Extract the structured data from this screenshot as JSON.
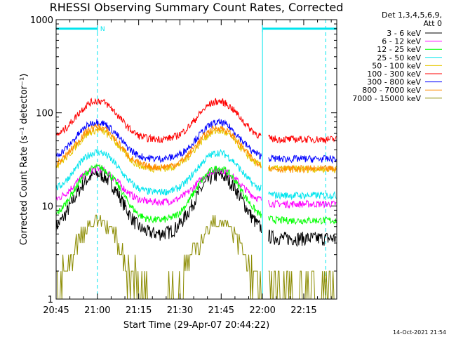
{
  "chart_data": {
    "type": "line",
    "title": "RHESSI Observing Summary Count Rates, Corrected",
    "xlabel": "Start Time (29-Apr-07 20:44:22)",
    "ylabel": "Corrected Count Rate (s⁻¹ detector⁻¹)",
    "x_unit": "minutes since 20:45",
    "xlim": [
      0,
      102
    ],
    "x_ticks": [
      {
        "value": 0,
        "label": "20:45"
      },
      {
        "value": 15,
        "label": "21:00"
      },
      {
        "value": 30,
        "label": "21:15"
      },
      {
        "value": 45,
        "label": "21:30"
      },
      {
        "value": 60,
        "label": "21:45"
      },
      {
        "value": 75,
        "label": "22:00"
      },
      {
        "value": 90,
        "label": "22:15"
      }
    ],
    "y_scale": "log",
    "ylim": [
      1,
      1000
    ],
    "y_ticks": [
      {
        "value": 1,
        "label": "1"
      },
      {
        "value": 10,
        "label": "10"
      },
      {
        "value": 100,
        "label": "100"
      },
      {
        "value": 1000,
        "label": "1000"
      }
    ],
    "legend_header": [
      "Det 1,3,4,5,6,9,",
      "Att 0"
    ],
    "legend_position": "right",
    "peaks_minutes": [
      15,
      59
    ],
    "series": [
      {
        "name": "3 - 6 keV",
        "color": "#000000",
        "base": 5,
        "peak": 22,
        "end": 4.5
      },
      {
        "name": "6 - 12 keV",
        "color": "#ff00ff",
        "base": 11,
        "peak": 25,
        "end": 10.5
      },
      {
        "name": "12 - 25 keV",
        "color": "#00ff00",
        "base": 7,
        "peak": 26,
        "end": 7
      },
      {
        "name": "25 - 50 keV",
        "color": "#00e5ee",
        "base": 14,
        "peak": 38,
        "end": 13
      },
      {
        "name": "50 - 100 keV",
        "color": "#e6c800",
        "base": 25,
        "peak": 65,
        "end": 25
      },
      {
        "name": "100 - 300 keV",
        "color": "#ff0000",
        "base": 52,
        "peak": 135,
        "end": 52
      },
      {
        "name": "300 - 800 keV",
        "color": "#0000ff",
        "base": 32,
        "peak": 80,
        "end": 32
      },
      {
        "name": "800 - 7000 keV",
        "color": "#ff8c00",
        "base": 26,
        "peak": 70,
        "end": 25
      },
      {
        "name": "7000 - 15000 keV",
        "color": "#8b8b00",
        "base": 1,
        "peak": 7,
        "end": 1.1
      }
    ],
    "annotations": {
      "night_periods_minutes": [
        [
          0,
          15
        ],
        [
          75,
          102
        ]
      ],
      "saa_label": "N",
      "saa_bar_level": 800,
      "dashed_marker_minutes": [
        15,
        98
      ]
    },
    "timestamp": "14-Oct-2021 21:54"
  },
  "colors": {
    "annotation": "#00e5ee",
    "axis": "#000000",
    "background": "#ffffff"
  }
}
